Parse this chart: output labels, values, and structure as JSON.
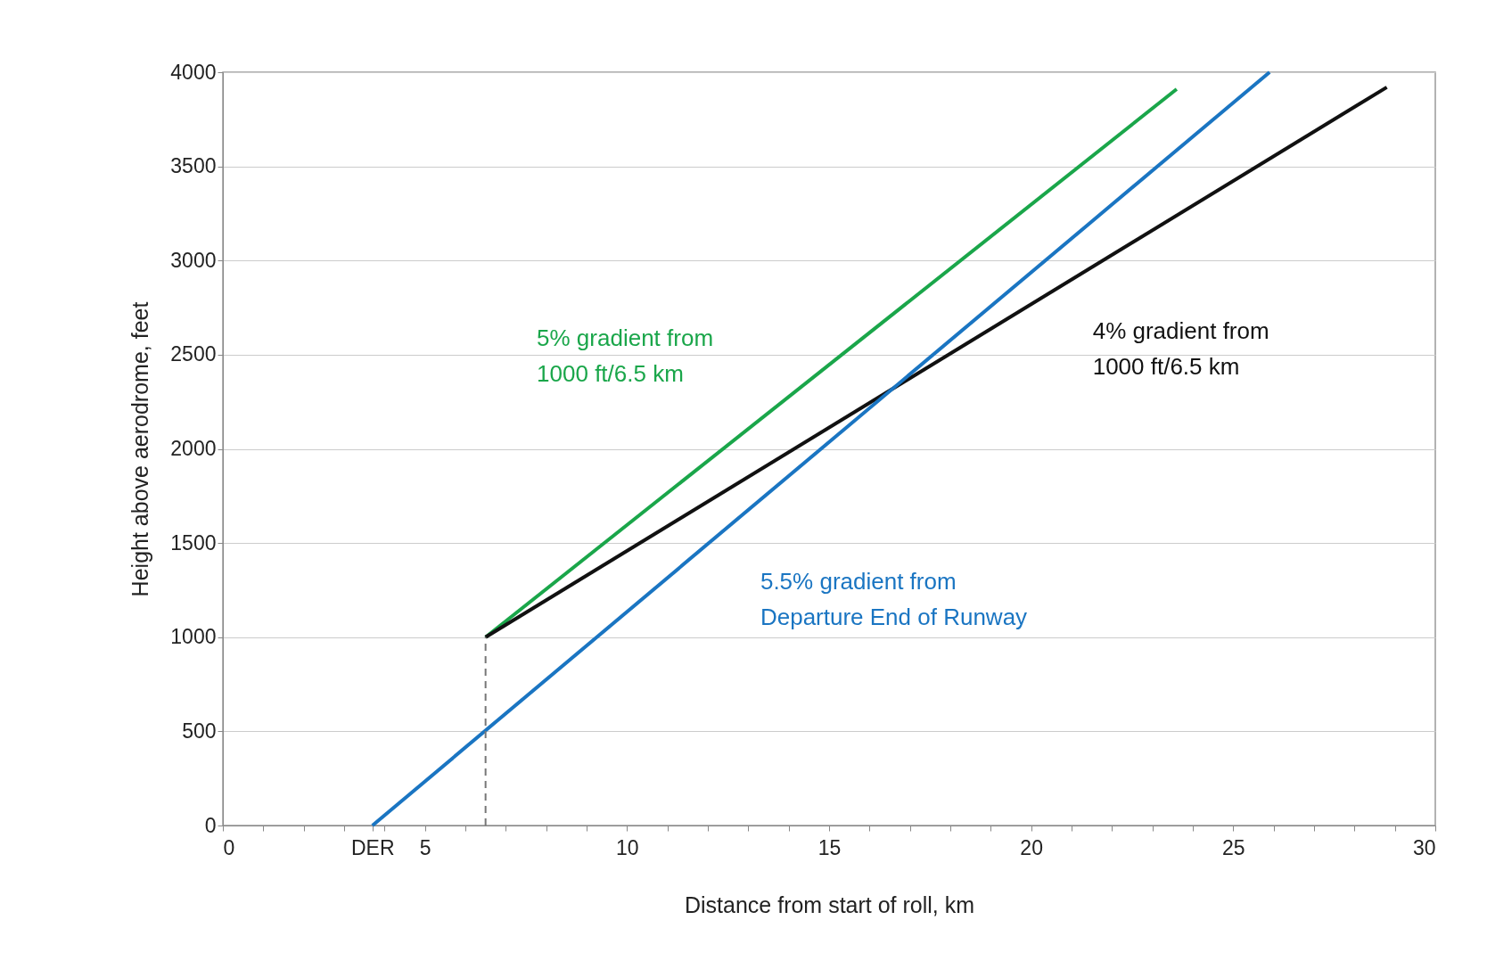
{
  "chart_data": {
    "type": "line",
    "xlabel": "Distance from start of roll, km",
    "ylabel": "Height above aerodrome, feet",
    "xlim": [
      0,
      30
    ],
    "ylim": [
      0,
      4000
    ],
    "xticks": [
      0,
      {
        "value": 1,
        "label": null
      },
      {
        "value": 2,
        "label": null
      },
      {
        "value": 3,
        "label": null
      },
      {
        "value": 3.7,
        "label": "DER"
      },
      {
        "value": 4,
        "label": null
      },
      5,
      {
        "value": 6,
        "label": null
      },
      {
        "value": 7,
        "label": null
      },
      {
        "value": 8,
        "label": null
      },
      {
        "value": 9,
        "label": null
      },
      10,
      {
        "value": 11,
        "label": null
      },
      {
        "value": 12,
        "label": null
      },
      {
        "value": 13,
        "label": null
      },
      {
        "value": 14,
        "label": null
      },
      15,
      {
        "value": 16,
        "label": null
      },
      {
        "value": 17,
        "label": null
      },
      {
        "value": 18,
        "label": null
      },
      {
        "value": 19,
        "label": null
      },
      20,
      {
        "value": 21,
        "label": null
      },
      {
        "value": 22,
        "label": null
      },
      {
        "value": 23,
        "label": null
      },
      {
        "value": 24,
        "label": null
      },
      25,
      {
        "value": 26,
        "label": null
      },
      {
        "value": 27,
        "label": null
      },
      {
        "value": 28,
        "label": null
      },
      {
        "value": 29,
        "label": null
      },
      30
    ],
    "yticks": [
      0,
      500,
      1000,
      1500,
      2000,
      2500,
      3000,
      3500,
      4000
    ],
    "grid": "y",
    "marker": "none",
    "series": [
      {
        "color": "#1aa64a",
        "x": [
          6.5,
          23.6
        ],
        "values": [
          1000,
          3910
        ]
      },
      {
        "color": "#111111",
        "x": [
          6.5,
          28.8
        ],
        "values": [
          1000,
          3920
        ]
      },
      {
        "color": "#1a75c2",
        "x": [
          3.7,
          25.9
        ],
        "values": [
          0,
          4000
        ]
      },
      {
        "color": "#777777",
        "line_style": "dashed",
        "x": [
          6.5,
          6.5
        ],
        "values": [
          0,
          1000
        ]
      }
    ],
    "annotations": [
      {
        "text": "5% gradient from\n1000 ft/6.5 km",
        "x": 13.7,
        "y": 2220
      },
      {
        "text": "4% gradient from\n1000 ft/6.5 km",
        "x": 20,
        "y": 2770
      },
      {
        "text": "5.5% gradient from\nDeparture End of Runway",
        "x": 11.8,
        "y": 1460
      }
    ]
  }
}
